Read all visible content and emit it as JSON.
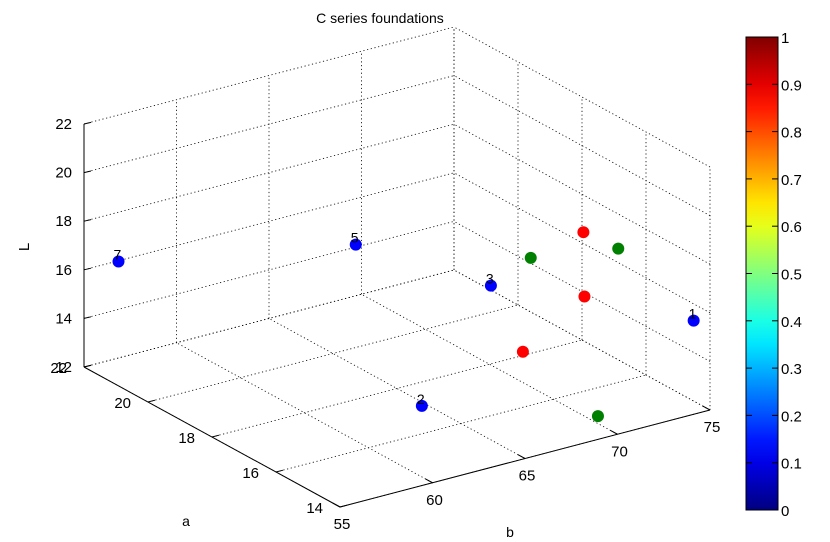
{
  "chart_data": {
    "type": "scatter",
    "title": "C series foundations",
    "xlabel": "a",
    "ylabel": "b",
    "zlabel": "L",
    "xlim": [
      14,
      22
    ],
    "ylim": [
      55,
      75
    ],
    "zlim": [
      12,
      22
    ],
    "x_ticks": [
      "14",
      "16",
      "18",
      "20",
      "22"
    ],
    "y_ticks": [
      "55",
      "60",
      "65",
      "70",
      "75"
    ],
    "z_ticks": [
      "12",
      "14",
      "16",
      "18",
      "20",
      "22"
    ],
    "grid": true,
    "colorbar": {
      "range": [
        0,
        1
      ],
      "colormap": "jet",
      "ticks": [
        "0",
        "0.1",
        "0.2",
        "0.3",
        "0.4",
        "0.5",
        "0.6",
        "0.7",
        "0.8",
        "0.9",
        "1"
      ]
    },
    "points": [
      {
        "label": "1",
        "a": 14.8,
        "b": 75.5,
        "L": 15.0,
        "value": 0.1,
        "color": "#0000ff"
      },
      {
        "label": "2",
        "a": 15.2,
        "b": 61.5,
        "L": 14.0,
        "value": 0.1,
        "color": "#0000ff"
      },
      {
        "label": "3",
        "a": 16.8,
        "b": 68.0,
        "L": 16.5,
        "value": 0.1,
        "color": "#0000ff"
      },
      {
        "label": "5",
        "a": 19.0,
        "b": 64.5,
        "L": 17.3,
        "value": 0.1,
        "color": "#0000ff"
      },
      {
        "label": "7",
        "a": 21.5,
        "b": 56.0,
        "L": 16.5,
        "value": 0.1,
        "color": "#0000ff"
      },
      {
        "label": "",
        "a": 15.8,
        "b": 68.0,
        "L": 14.5,
        "value": 0.9,
        "color": "#ff0000"
      },
      {
        "label": "",
        "a": 15.9,
        "b": 71.5,
        "L": 16.0,
        "value": 0.9,
        "color": "#ff0000"
      },
      {
        "label": "",
        "a": 16.8,
        "b": 73.0,
        "L": 17.7,
        "value": 0.9,
        "color": "#ff0000"
      },
      {
        "label": "",
        "a": 17.0,
        "b": 70.5,
        "L": 17.0,
        "value": 0.5,
        "color": "#008000"
      },
      {
        "label": "",
        "a": 16.0,
        "b": 73.5,
        "L": 17.5,
        "value": 0.5,
        "color": "#008000"
      },
      {
        "label": "",
        "a": 14.9,
        "b": 70.5,
        "L": 12.0,
        "value": 0.5,
        "color": "#008000"
      }
    ]
  }
}
